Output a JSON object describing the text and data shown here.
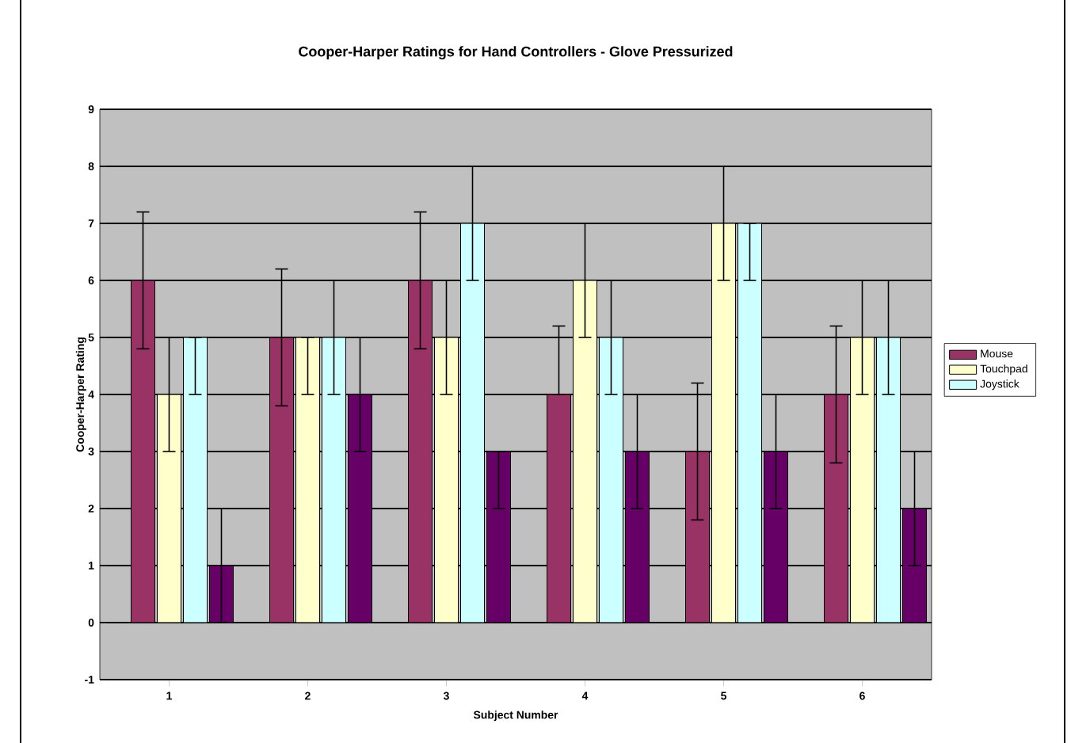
{
  "chart_data": {
    "type": "bar",
    "title": "Cooper-Harper Ratings for Hand Controllers - Glove Pressurized",
    "xlabel": "Subject Number",
    "ylabel": "Cooper-Harper Rating",
    "categories": [
      "1",
      "2",
      "3",
      "4",
      "5",
      "6"
    ],
    "series": [
      {
        "name": "Mouse",
        "color": "#993366",
        "values": [
          6,
          5,
          6,
          4,
          3,
          4
        ],
        "errors": [
          1.2,
          1.2,
          1.2,
          [
            4,
            5.2
          ],
          1.2,
          1.2
        ]
      },
      {
        "name": "Touchpad",
        "color": "#ffffcc",
        "values": [
          4,
          5,
          5,
          6,
          7,
          5
        ],
        "errors": [
          1,
          [
            4,
            5
          ],
          1,
          1,
          1,
          1
        ]
      },
      {
        "name": "Joystick",
        "color": "#ccffff",
        "values": [
          5,
          5,
          7,
          5,
          7,
          5
        ],
        "errors": [
          [
            4,
            5
          ],
          1,
          1,
          1,
          [
            6,
            7
          ],
          1
        ]
      },
      {
        "color": "#660066",
        "values": [
          1,
          4,
          3,
          3,
          3,
          2
        ],
        "errors": [
          1,
          1,
          [
            2,
            3
          ],
          1,
          1,
          1
        ]
      }
    ],
    "ylim": [
      -1,
      9
    ],
    "yticks": [
      -1,
      0,
      1,
      2,
      3,
      4,
      5,
      6,
      7,
      8,
      9
    ],
    "grid": "y",
    "legend": "right"
  }
}
